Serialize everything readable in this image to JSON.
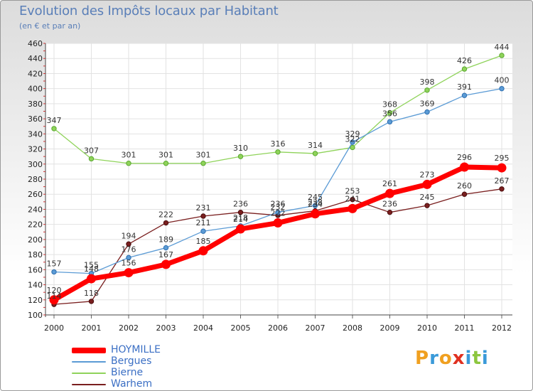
{
  "header": {
    "title": "Evolution des Impôts locaux par Habitant",
    "subtitle": "(en € et par an)"
  },
  "logo": {
    "letters": [
      "P",
      "r",
      "o",
      "x",
      "i",
      "t",
      "i"
    ],
    "colors": [
      "#f0a020",
      "#3a9ad9",
      "#f0a020",
      "#e03020",
      "#3a9ad9",
      "#8cc63f",
      "#3a9ad9"
    ]
  },
  "chart_data": {
    "type": "line",
    "title": "Evolution des Impôts locaux par Habitant",
    "subtitle": "(en € et par an)",
    "xlabel": "",
    "ylabel": "",
    "x": [
      "2000",
      "2001",
      "2002",
      "2003",
      "2004",
      "2005",
      "2006",
      "2007",
      "2008",
      "2009",
      "2010",
      "2011",
      "2012"
    ],
    "ylim": [
      100,
      460
    ],
    "yticks": [
      100,
      120,
      140,
      160,
      180,
      200,
      220,
      240,
      260,
      280,
      300,
      320,
      340,
      360,
      380,
      400,
      420,
      440,
      460
    ],
    "grid": true,
    "legend_position": "bottom-left",
    "series": [
      {
        "name": "Warhem",
        "color": "#7a1f1f",
        "values": [
          114,
          118,
          194,
          222,
          231,
          236,
          232,
          238,
          253,
          236,
          245,
          260,
          267
        ]
      },
      {
        "name": "Bierne",
        "color": "#8fd35a",
        "values": [
          347,
          307,
          301,
          301,
          301,
          310,
          316,
          314,
          322,
          368,
          398,
          426,
          444
        ]
      },
      {
        "name": "Bergues",
        "color": "#5b9bd5",
        "values": [
          157,
          155,
          176,
          189,
          211,
          218,
          236,
          245,
          329,
          356,
          369,
          391,
          400
        ]
      },
      {
        "name": "HOYMILLE",
        "color": "#ff0000",
        "values": [
          120,
          148,
          156,
          167,
          185,
          214,
          222,
          234,
          241,
          261,
          273,
          296,
          295
        ]
      }
    ],
    "legend_order": [
      "HOYMILLE",
      "Bergues",
      "Bierne",
      "Warhem"
    ]
  }
}
